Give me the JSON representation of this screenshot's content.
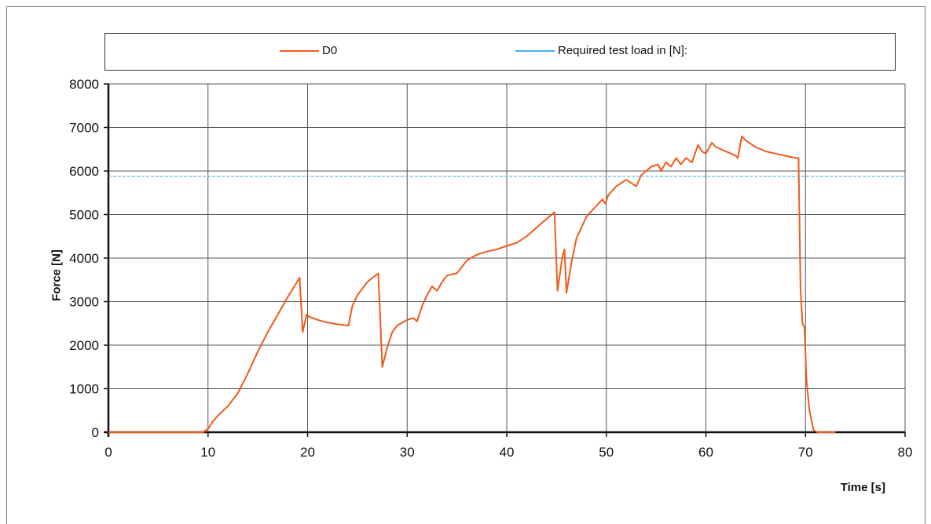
{
  "chart_data": {
    "type": "line",
    "xlabel": "Time [s]",
    "ylabel": "Force [N]",
    "xlim": [
      0,
      80
    ],
    "ylim": [
      0,
      8000
    ],
    "x_ticks": [
      "0",
      "10",
      "20",
      "30",
      "40",
      "50",
      "60",
      "70",
      "80"
    ],
    "y_ticks": [
      "0",
      "1000",
      "2000",
      "3000",
      "4000",
      "5000",
      "6000",
      "7000",
      "8000"
    ],
    "grid": true,
    "legend_position": "top",
    "series": [
      {
        "name": "D0",
        "color": "#f05a1a",
        "points": [
          [
            0,
            0
          ],
          [
            9.5,
            0
          ],
          [
            10.0,
            80
          ],
          [
            10.5,
            250
          ],
          [
            11,
            380
          ],
          [
            12,
            600
          ],
          [
            13,
            900
          ],
          [
            14,
            1350
          ],
          [
            15,
            1850
          ],
          [
            16,
            2300
          ],
          [
            17,
            2700
          ],
          [
            18,
            3100
          ],
          [
            19.2,
            3550
          ],
          [
            19.5,
            2300
          ],
          [
            19.9,
            2700
          ],
          [
            20.2,
            2650
          ],
          [
            21,
            2580
          ],
          [
            22,
            2520
          ],
          [
            23,
            2480
          ],
          [
            24.1,
            2450
          ],
          [
            24.5,
            2900
          ],
          [
            25,
            3150
          ],
          [
            26,
            3450
          ],
          [
            27.1,
            3650
          ],
          [
            27.5,
            1500
          ],
          [
            28,
            1950
          ],
          [
            28.5,
            2300
          ],
          [
            29,
            2450
          ],
          [
            30,
            2580
          ],
          [
            30.6,
            2620
          ],
          [
            31,
            2550
          ],
          [
            31.5,
            2900
          ],
          [
            32,
            3150
          ],
          [
            32.5,
            3350
          ],
          [
            33,
            3250
          ],
          [
            33.5,
            3450
          ],
          [
            34,
            3600
          ],
          [
            35,
            3650
          ],
          [
            35.5,
            3800
          ],
          [
            36,
            3950
          ],
          [
            37,
            4080
          ],
          [
            38,
            4150
          ],
          [
            39,
            4200
          ],
          [
            40,
            4280
          ],
          [
            41,
            4350
          ],
          [
            42,
            4500
          ],
          [
            43,
            4700
          ],
          [
            44,
            4900
          ],
          [
            44.8,
            5050
          ],
          [
            45.1,
            3250
          ],
          [
            45.6,
            4050
          ],
          [
            45.8,
            4200
          ],
          [
            46.0,
            3200
          ],
          [
            46.5,
            3900
          ],
          [
            47,
            4450
          ],
          [
            48,
            4950
          ],
          [
            49,
            5200
          ],
          [
            49.6,
            5350
          ],
          [
            49.9,
            5250
          ],
          [
            50.2,
            5450
          ],
          [
            51,
            5650
          ],
          [
            52,
            5800
          ],
          [
            53,
            5650
          ],
          [
            53.5,
            5900
          ],
          [
            54.5,
            6100
          ],
          [
            55.2,
            6150
          ],
          [
            55.5,
            6000
          ],
          [
            56,
            6200
          ],
          [
            56.5,
            6100
          ],
          [
            57,
            6300
          ],
          [
            57.5,
            6150
          ],
          [
            58,
            6300
          ],
          [
            58.6,
            6200
          ],
          [
            59.2,
            6600
          ],
          [
            59.6,
            6450
          ],
          [
            60,
            6400
          ],
          [
            60.6,
            6650
          ],
          [
            61,
            6550
          ],
          [
            62,
            6450
          ],
          [
            63,
            6350
          ],
          [
            63.2,
            6300
          ],
          [
            63.6,
            6800
          ],
          [
            64,
            6700
          ],
          [
            65,
            6550
          ],
          [
            66,
            6450
          ],
          [
            67,
            6400
          ],
          [
            68,
            6350
          ],
          [
            69,
            6300
          ],
          [
            69.3,
            6300
          ],
          [
            69.5,
            3300
          ],
          [
            69.7,
            2500
          ],
          [
            69.9,
            2400
          ],
          [
            70.1,
            1200
          ],
          [
            70.4,
            500
          ],
          [
            70.8,
            50
          ],
          [
            71.2,
            0
          ],
          [
            73,
            0
          ]
        ]
      },
      {
        "name": "Required test load in [N]:",
        "color": "#49b0ee",
        "points": [
          [
            0,
            5880
          ],
          [
            80,
            5880
          ]
        ]
      }
    ]
  }
}
